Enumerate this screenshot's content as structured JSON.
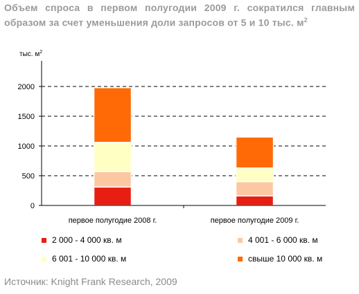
{
  "title": {
    "text": "Объем спроса в первом полугодии 2009 г. сократился главным образом за счет уменьшения доли запросов от 5 и 10 тыс. м",
    "sup": "2"
  },
  "source": "Источник: Knight Frank Research, 2009",
  "chart_data": {
    "type": "bar",
    "stacked": true,
    "ylabel": "тыс. м",
    "ylabel_sup": "2",
    "ylim": [
      0,
      2000
    ],
    "yticks": [
      0,
      500,
      1000,
      1500,
      2000
    ],
    "grid": "dashed horizontal",
    "categories": [
      "первое полугодие 2008 г.",
      "первое полугодие 2009 г."
    ],
    "series": [
      {
        "name": "2 000 - 4 000 кв. м",
        "color": "#e81e13",
        "values": [
          310,
          160
        ]
      },
      {
        "name": "4 001 - 6 000 кв. м",
        "color": "#fbc8a2",
        "values": [
          260,
          240
        ]
      },
      {
        "name": "6 001 - 10 000 кв. м",
        "color": "#ffffc4",
        "values": [
          490,
          230
        ]
      },
      {
        "name": "свыше 10 000 кв. м",
        "color": "#ff6a06",
        "values": [
          920,
          520
        ]
      }
    ],
    "legend_placement": "bottom"
  }
}
